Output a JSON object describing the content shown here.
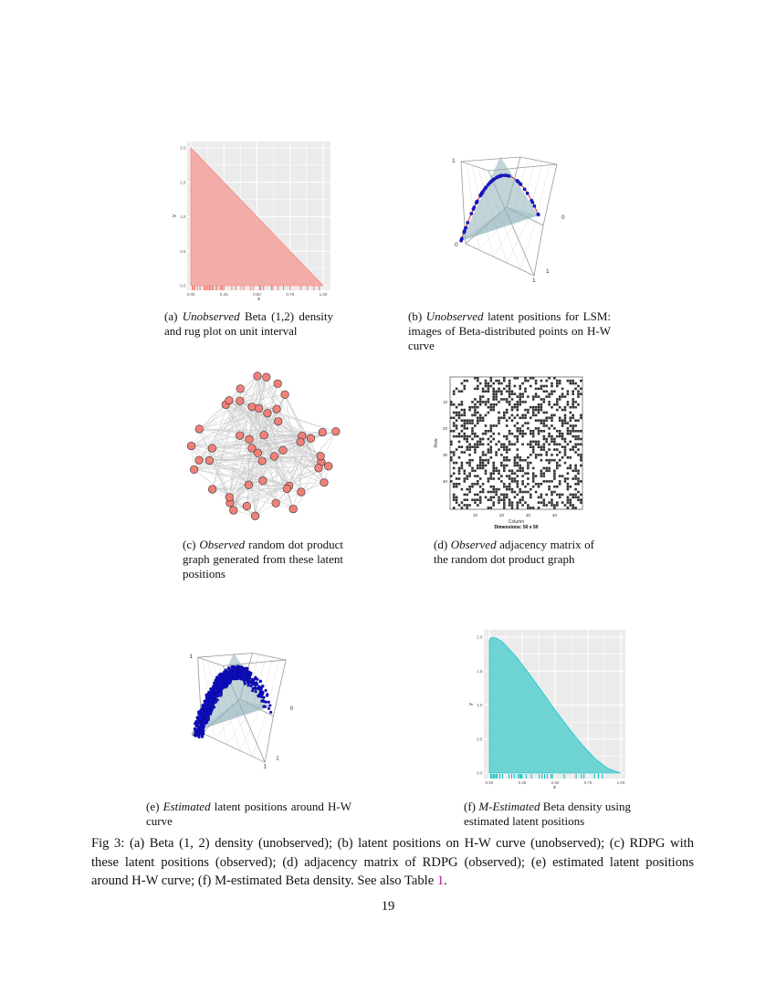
{
  "chart_data": [
    {
      "panel": "a",
      "type": "area",
      "xlabel": "x",
      "ylabel": "y",
      "xlim": [
        0,
        1
      ],
      "ylim": [
        0,
        2
      ],
      "x_ticks": [
        "0.00",
        "0.25",
        "0.50",
        "0.75",
        "1.00"
      ],
      "y_ticks": [
        "0.0",
        "0.5",
        "1.0",
        "1.5",
        "2.0"
      ],
      "grid": true,
      "fill_color": "#f4a6a2",
      "rug_color": "#f8766d",
      "density": {
        "x": [
          0,
          1
        ],
        "y": [
          2,
          0
        ]
      },
      "rug": [
        0.01,
        0.02,
        0.03,
        0.05,
        0.07,
        0.1,
        0.11,
        0.12,
        0.13,
        0.14,
        0.15,
        0.16,
        0.17,
        0.19,
        0.2,
        0.22,
        0.23,
        0.24,
        0.25,
        0.31,
        0.34,
        0.38,
        0.4,
        0.45,
        0.47,
        0.52,
        0.53,
        0.55,
        0.61,
        0.62,
        0.66,
        0.7,
        0.75,
        0.83,
        0.88,
        0.93,
        0.97
      ]
    },
    {
      "panel": "b",
      "type": "scatter3d",
      "tick_labels": [
        "1",
        "0",
        "0",
        "1",
        "1"
      ],
      "point_color": "#1a1ad0",
      "curve_color": "#d03030",
      "surface_color": "#8fb0b8"
    },
    {
      "panel": "c",
      "type": "network",
      "node_color": "#f08078",
      "edge_color": "#c8c8c8"
    },
    {
      "panel": "d",
      "type": "heatmap",
      "xlabel": "Column",
      "ylabel": "Row",
      "x_ticks": [
        "10",
        "20",
        "30",
        "40"
      ],
      "y_ticks": [
        "10",
        "20",
        "30",
        "40"
      ],
      "subtitle": "Dimensions: 50 x 50",
      "cell_color": "#333333"
    },
    {
      "panel": "e",
      "type": "scatter3d",
      "tick_labels": [
        "1",
        "0",
        "0",
        "1",
        "1"
      ],
      "point_color": "#1010c8",
      "surface_color": "#8fb0b8"
    },
    {
      "panel": "f",
      "type": "area",
      "xlabel": "x",
      "ylabel": "y",
      "xlim": [
        0,
        1
      ],
      "ylim": [
        0,
        2
      ],
      "x_ticks": [
        "0.00",
        "0.25",
        "0.50",
        "0.75",
        "1.00"
      ],
      "y_ticks": [
        "0.0",
        "0.5",
        "1.0",
        "1.5",
        "2.0"
      ],
      "grid": true,
      "fill_color": "#5fd0d0",
      "rug_color": "#00bfc4",
      "density": {
        "x": [
          0,
          0.01,
          0.03,
          0.05,
          0.1,
          0.2,
          0.3,
          0.4,
          0.5,
          0.6,
          0.7,
          0.8,
          0.9,
          1.0
        ],
        "y": [
          1.95,
          1.99,
          2.0,
          1.99,
          1.93,
          1.72,
          1.47,
          1.2,
          0.93,
          0.67,
          0.43,
          0.22,
          0.07,
          0
        ]
      },
      "rug": [
        0.01,
        0.02,
        0.03,
        0.04,
        0.05,
        0.06,
        0.08,
        0.1,
        0.15,
        0.17,
        0.19,
        0.22,
        0.23,
        0.24,
        0.25,
        0.28,
        0.32,
        0.38,
        0.4,
        0.42,
        0.44,
        0.47,
        0.48,
        0.57,
        0.66,
        0.7,
        0.72,
        0.8,
        0.83,
        0.86
      ]
    }
  ],
  "captions": {
    "a": {
      "label": "(a)",
      "em": "Unobserved",
      "rest": " Beta (1,2) density and rug plot on unit interval"
    },
    "b": {
      "label": "(b)",
      "em": "Unobserved",
      "rest": " latent positions for LSM: images of Beta-distributed points on H-W curve"
    },
    "c": {
      "label": "(c)",
      "em": "Observed",
      "rest": " random dot product graph generated from these latent positions"
    },
    "d": {
      "label": "(d)",
      "em": "Observed",
      "rest": " adjacency matrix of the random dot product graph"
    },
    "e": {
      "label": "(e)",
      "em": "Estimated",
      "rest": " latent positions around H-W curve"
    },
    "f": {
      "label": "(f)",
      "em": "M-Estimated",
      "rest": " Beta density using estimated latent positions"
    }
  },
  "figure_caption": {
    "text": "Fig 3: (a) Beta (1, 2) density (unobserved); (b) latent positions on H-W curve (unobserved); (c) RDPG with these latent positions (observed); (d) adjacency matrix of RDPG (observed); (e) estimated latent positions around H-W curve; (f) M-estimated Beta density. See also Table ",
    "ref": "1",
    "end": "."
  },
  "page_number": "19"
}
